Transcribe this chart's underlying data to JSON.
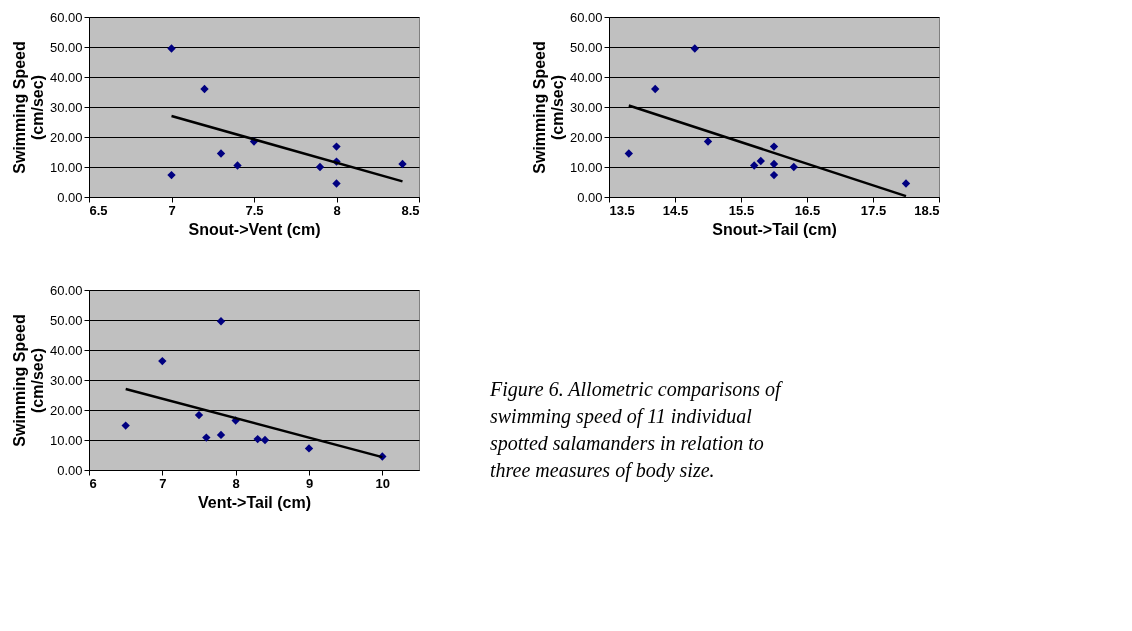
{
  "chart_data": [
    {
      "type": "scatter",
      "xlabel": "Snout->Vent (cm)",
      "ylabel": "Swimming Speed\n(cm/sec)",
      "xlim": [
        6.5,
        8.5
      ],
      "xticks": [
        6.5,
        7,
        7.5,
        8,
        8.5
      ],
      "ylim": [
        0,
        60
      ],
      "yticks": [
        {
          "value": 0,
          "label": "0.00"
        },
        {
          "value": 10,
          "label": "10.00"
        },
        {
          "value": 20,
          "label": "20.00"
        },
        {
          "value": 30,
          "label": "30.00"
        },
        {
          "value": 40,
          "label": "40.00"
        },
        {
          "value": 50,
          "label": "50.00"
        },
        {
          "value": 60,
          "label": "60.00"
        }
      ],
      "grid": "y",
      "series": [
        {
          "type": "scatter",
          "marker": "diamond",
          "color": "#000080",
          "x": [
            7,
            7.2,
            7.3,
            7.4,
            7.5,
            7.9,
            8,
            8,
            8,
            8.4,
            7
          ],
          "values": [
            49.5,
            36,
            14.5,
            10.5,
            18.5,
            10,
            16.8,
            11.8,
            4.5,
            11,
            7.3
          ]
        },
        {
          "type": "line",
          "color": "#000000",
          "x": [
            7,
            8.4
          ],
          "values": [
            27,
            5.2
          ]
        }
      ]
    },
    {
      "type": "scatter",
      "xlabel": "Snout->Tail (cm)",
      "ylabel": "Swimming Speed\n(cm/sec)",
      "xlim": [
        13.5,
        18.5
      ],
      "xticks": [
        13.5,
        14.5,
        15.5,
        16.5,
        17.5,
        18.5
      ],
      "ylim": [
        0,
        60
      ],
      "yticks": [
        {
          "value": 0,
          "label": "0.00"
        },
        {
          "value": 10,
          "label": "10.00"
        },
        {
          "value": 20,
          "label": "20.00"
        },
        {
          "value": 30,
          "label": "30.00"
        },
        {
          "value": 40,
          "label": "40.00"
        },
        {
          "value": 50,
          "label": "50.00"
        },
        {
          "value": 60,
          "label": "60.00"
        }
      ],
      "grid": "y",
      "series": [
        {
          "type": "scatter",
          "marker": "diamond",
          "color": "#000080",
          "x": [
            13.8,
            14.2,
            14.8,
            15,
            15.7,
            15.8,
            16,
            16,
            16,
            16.3,
            18
          ],
          "values": [
            14.5,
            36,
            49.5,
            18.5,
            10.5,
            12,
            16.8,
            11,
            7.3,
            10,
            4.5
          ]
        },
        {
          "type": "line",
          "color": "#000000",
          "x": [
            13.8,
            18
          ],
          "values": [
            30.5,
            0.3
          ]
        }
      ]
    },
    {
      "type": "scatter",
      "xlabel": "Vent->Tail (cm)",
      "ylabel": "Swimming Speed\n(cm/sec)",
      "xlim": [
        6,
        10.5
      ],
      "xticks": [
        6,
        7,
        8,
        9,
        10
      ],
      "ylim": [
        0,
        60
      ],
      "yticks": [
        {
          "value": 0,
          "label": "0.00"
        },
        {
          "value": 10,
          "label": "10.00"
        },
        {
          "value": 20,
          "label": "20.00"
        },
        {
          "value": 30,
          "label": "30.00"
        },
        {
          "value": 40,
          "label": "40.00"
        },
        {
          "value": 50,
          "label": "50.00"
        },
        {
          "value": 60,
          "label": "60.00"
        }
      ],
      "grid": "y",
      "annotations": [
        "Figure 6.  Allometric comparisons of swimming speed of 11 individual spotted salamanders in relation to three measures of body size."
      ],
      "series": [
        {
          "type": "scatter",
          "marker": "diamond",
          "color": "#000080",
          "x": [
            6.5,
            7,
            7.5,
            7.6,
            7.8,
            7.8,
            8,
            8.3,
            8.4,
            9,
            10
          ],
          "values": [
            14.8,
            36.3,
            18.3,
            10.8,
            11.7,
            49.6,
            16.5,
            10.3,
            10,
            7.2,
            4.5
          ]
        },
        {
          "type": "line",
          "color": "#000000",
          "x": [
            6.5,
            10
          ],
          "values": [
            27,
            4.3
          ]
        }
      ]
    }
  ]
}
